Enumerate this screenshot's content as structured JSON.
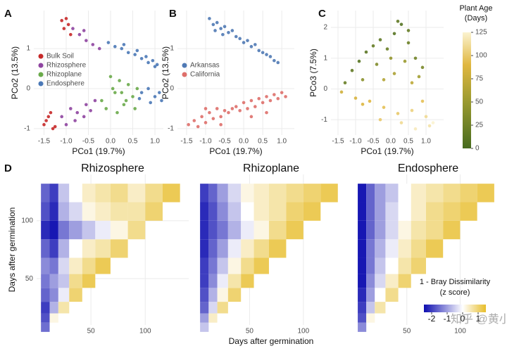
{
  "watermark": "知乎 @黄小伟",
  "chart_data": [
    {
      "type": "scatter",
      "panel_label": "A",
      "xlabel": "PCo1 (19.7%)",
      "ylabel": "PCo2 (13.5%)",
      "xlim": [
        -1.73,
        1.19
      ],
      "ylim": [
        -1.16,
        1.95
      ],
      "xticks": [
        -1.5,
        {
          "value": -1,
          "label": "-1.0"
        },
        -0.5,
        {
          "value": 0,
          "label": "0.0"
        },
        0.5,
        {
          "value": 1,
          "label": "1.0"
        }
      ],
      "yticks": [
        -1,
        0,
        1
      ],
      "grid": true,
      "legend": "left",
      "series": [
        {
          "name": "Bulk Soil",
          "color": "#c62828",
          "x": [
            -1.0,
            -0.95,
            -1.05,
            -0.9,
            -1.1,
            -1.45,
            -1.35,
            -1.5,
            -1.25,
            -1.4,
            -1.3
          ],
          "values": [
            1.75,
            1.6,
            1.5,
            1.35,
            1.7,
            -0.8,
            -0.6,
            -0.9,
            -0.95,
            -0.7,
            -1.0
          ]
        },
        {
          "name": "Rhizosphere",
          "color": "#8e44a0",
          "x": [
            -0.85,
            -0.7,
            -0.55,
            -0.4,
            -0.25,
            -0.6,
            -1.1,
            -0.9,
            -0.75,
            -0.55,
            -0.35,
            -1.0,
            -0.8,
            -0.6,
            -0.45
          ],
          "values": [
            1.5,
            1.35,
            1.2,
            1.1,
            1.0,
            1.45,
            -0.7,
            -0.5,
            -0.6,
            -0.4,
            -0.3,
            -0.9,
            -0.8,
            -0.7,
            -0.55
          ]
        },
        {
          "name": "Rhizoplane",
          "color": "#6aaa4a",
          "x": [
            -0.2,
            0.0,
            0.1,
            0.2,
            0.3,
            0.4,
            0.5,
            0.6,
            -0.1,
            0.15,
            0.35,
            0.55,
            0.05,
            0.25
          ],
          "values": [
            -0.3,
            0.3,
            -0.1,
            0.2,
            -0.4,
            0.1,
            -0.2,
            0.0,
            -0.5,
            -0.6,
            -0.3,
            -0.5,
            0.0,
            -0.1
          ]
        },
        {
          "name": "Endosphere",
          "color": "#4a78b6",
          "x": [
            -0.05,
            0.1,
            0.25,
            0.4,
            0.55,
            0.7,
            0.85,
            1.0,
            1.05,
            0.3,
            0.6,
            0.8,
            0.95,
            0.7,
            0.85,
            1.0,
            1.1,
            1.15,
            0.9,
            0.65
          ],
          "values": [
            1.15,
            1.05,
            1.0,
            0.9,
            0.85,
            0.75,
            0.65,
            0.55,
            0.6,
            1.1,
            0.95,
            0.8,
            0.7,
            -0.1,
            0.0,
            -0.2,
            -0.1,
            -0.3,
            -0.35,
            -0.25
          ]
        }
      ]
    },
    {
      "type": "scatter",
      "panel_label": "B",
      "xlabel": "PCo1 (19.7%)",
      "ylabel": "PCo2 (13.5%)",
      "xlim": [
        -1.74,
        1.33
      ],
      "ylim": [
        -1.16,
        1.95
      ],
      "xticks": [
        -1.5,
        {
          "value": -1,
          "label": "-1.0"
        },
        -0.5,
        {
          "value": 0,
          "label": "0.0"
        },
        0.5,
        {
          "value": 1,
          "label": "1.0"
        }
      ],
      "yticks": [
        -1,
        0,
        1
      ],
      "grid": true,
      "legend": "left",
      "series": [
        {
          "name": "Arkansas",
          "color": "#4f79b4",
          "x": [
            -0.9,
            -0.8,
            -0.7,
            -0.6,
            -0.5,
            -0.4,
            -0.3,
            -0.2,
            -0.1,
            0.0,
            0.1,
            0.2,
            0.3,
            0.4,
            0.5,
            0.6,
            0.7,
            0.8,
            0.9,
            -0.75,
            -0.55
          ],
          "values": [
            1.75,
            1.6,
            1.65,
            1.5,
            1.55,
            1.4,
            1.45,
            1.3,
            1.25,
            1.15,
            1.2,
            1.05,
            1.1,
            0.95,
            0.9,
            0.85,
            0.8,
            0.7,
            0.65,
            1.45,
            1.35
          ]
        },
        {
          "name": "California",
          "color": "#de6f6a",
          "x": [
            -1.45,
            -1.3,
            -1.2,
            -1.1,
            -1.0,
            -0.9,
            -0.8,
            -0.7,
            -0.6,
            -0.5,
            -0.4,
            -0.3,
            -0.2,
            -0.1,
            0.0,
            0.1,
            0.2,
            0.3,
            0.4,
            0.5,
            0.6,
            0.7,
            0.8,
            0.9,
            1.0,
            1.1,
            -1.0,
            -0.6,
            0.2,
            0.6
          ],
          "values": [
            -0.9,
            -0.8,
            -0.95,
            -0.7,
            -0.85,
            -0.6,
            -0.75,
            -0.5,
            -0.7,
            -0.55,
            -0.6,
            -0.5,
            -0.45,
            -0.55,
            -0.35,
            -0.5,
            -0.3,
            -0.45,
            -0.25,
            -0.35,
            -0.2,
            -0.3,
            -0.15,
            -0.25,
            -0.1,
            -0.2,
            -0.5,
            -0.9,
            -0.7,
            -0.6
          ]
        }
      ]
    },
    {
      "type": "scatter",
      "panel_label": "C",
      "xlabel": "PCo1 (19.7%)",
      "ylabel": "PCo3 (7.5%)",
      "xlim": [
        -1.7,
        1.5
      ],
      "ylim": [
        -1.5,
        2.55
      ],
      "xticks": [
        -1.5,
        {
          "value": -1,
          "label": "-1.0"
        },
        -0.5,
        {
          "value": 0,
          "label": "0.0"
        },
        0.5,
        {
          "value": 1,
          "label": "1.0"
        }
      ],
      "yticks": [
        -1,
        0,
        1,
        2
      ],
      "grid": true,
      "series": [
        {
          "x": [
            -1.3,
            -1.1,
            -0.9,
            -0.7,
            -0.5,
            -0.3,
            -0.1,
            0.1,
            0.3,
            0.5,
            0.7,
            0.9,
            -0.8,
            -0.4,
            0.0,
            0.4,
            0.8,
            0.2,
            0.5,
            0.1,
            -0.2,
            0.6,
            -1.4,
            -1.0,
            -0.6,
            -0.2,
            0.2,
            0.6,
            1.0,
            1.1,
            -0.8,
            -0.3,
            0.3,
            0.9,
            0.7,
            1.2
          ],
          "values": [
            0.2,
            0.6,
            0.9,
            1.2,
            1.4,
            1.6,
            1.3,
            1.8,
            2.1,
            1.5,
            1.0,
            0.7,
            0.3,
            0.8,
            1.0,
            0.9,
            0.4,
            2.2,
            1.9,
            0.5,
            0.3,
            0.2,
            -0.1,
            -0.3,
            -0.4,
            -0.6,
            -0.8,
            -0.7,
            -0.9,
            -1.2,
            -0.5,
            -1.0,
            -1.1,
            -0.4,
            -1.3,
            -1.1
          ],
          "ages": [
            20,
            15,
            10,
            12,
            18,
            14,
            20,
            10,
            8,
            22,
            25,
            30,
            40,
            35,
            45,
            50,
            55,
            15,
            18,
            60,
            65,
            70,
            80,
            85,
            90,
            95,
            100,
            105,
            110,
            115,
            88,
            100,
            110,
            95,
            120,
            125
          ]
        }
      ],
      "colorbar": {
        "title": [
          "Plant Age",
          "(Days)"
        ],
        "clim": [
          0,
          125
        ],
        "ticks": [
          0,
          25,
          50,
          75,
          100,
          125
        ],
        "stops": [
          [
            0,
            "#476b1f"
          ],
          [
            50,
            "#9a9a30"
          ],
          [
            90,
            "#e0b740"
          ],
          [
            125,
            "#fbf3d0"
          ]
        ]
      }
    },
    {
      "type": "heatmap",
      "panel_label": "D",
      "title": "Rhizosphere",
      "ylabel": "Days after germination",
      "xlim": [
        0,
        140
      ],
      "ylim": [
        10,
        140
      ],
      "xticks": [
        50,
        100
      ],
      "yticks": [
        50,
        100
      ],
      "grid": true,
      "x": [
        8,
        16,
        24,
        36,
        48,
        60,
        76,
        92,
        108,
        124
      ],
      "y": [
        8,
        16,
        24,
        36,
        48,
        60,
        76,
        92,
        108,
        124
      ],
      "stops": [
        [
          -2.5,
          "#0d0db0"
        ],
        [
          0,
          "#ffffff"
        ],
        [
          1.5,
          "#e7bd2a"
        ]
      ],
      "values": [
        [
          -1.5
        ],
        [
          -1.8,
          0.2
        ],
        [
          -2.0,
          -0.8,
          0.6
        ],
        [
          -1.6,
          -1.2,
          -0.2,
          1.0
        ],
        [
          -1.4,
          -1.0,
          -0.6,
          0.8,
          1.2
        ],
        [
          -1.2,
          -1.4,
          -0.4,
          0.4,
          0.8,
          1.2
        ],
        [
          -1.6,
          -2.0,
          -0.8,
          0.0,
          0.4,
          0.6,
          1.0
        ],
        [
          -2.2,
          -2.4,
          -1.4,
          -1.0,
          -0.6,
          -0.2,
          0.2,
          0.8
        ],
        [
          -1.8,
          -2.2,
          -0.8,
          -0.4,
          0.2,
          0.4,
          0.6,
          0.6,
          1.0
        ],
        [
          -1.6,
          -2.0,
          -0.6,
          0.0,
          0.4,
          0.6,
          0.8,
          0.4,
          0.8,
          1.2
        ]
      ]
    },
    {
      "type": "heatmap",
      "title": "Rhizoplane",
      "xlabel": "Days after germination",
      "xlim": [
        0,
        140
      ],
      "ylim": [
        10,
        140
      ],
      "xticks": [
        50,
        100
      ],
      "grid": true,
      "x": [
        8,
        16,
        24,
        36,
        48,
        60,
        76,
        92,
        108,
        124
      ],
      "y": [
        8,
        16,
        24,
        36,
        48,
        60,
        76,
        92,
        108,
        124
      ],
      "stops": [
        [
          -2.5,
          "#0d0db0"
        ],
        [
          0,
          "#ffffff"
        ],
        [
          1.5,
          "#e7bd2a"
        ]
      ],
      "values": [
        [
          -0.6
        ],
        [
          -1.0,
          0.4
        ],
        [
          -1.6,
          -0.4,
          0.8
        ],
        [
          -1.8,
          -0.8,
          0.2,
          1.0
        ],
        [
          -2.0,
          -1.2,
          -0.2,
          0.6,
          1.2
        ],
        [
          -2.0,
          -1.4,
          -0.6,
          0.2,
          0.8,
          1.2
        ],
        [
          -2.2,
          -1.6,
          -1.0,
          -0.2,
          0.4,
          0.8,
          1.2
        ],
        [
          -2.2,
          -1.8,
          -1.4,
          -0.8,
          -0.2,
          0.2,
          0.8,
          1.2
        ],
        [
          -2.2,
          -1.8,
          -1.2,
          -0.6,
          0.0,
          0.4,
          0.6,
          1.0,
          1.2
        ],
        [
          -2.0,
          -1.6,
          -1.0,
          -0.4,
          0.2,
          0.4,
          0.6,
          0.8,
          1.0,
          1.2
        ]
      ]
    },
    {
      "type": "heatmap",
      "title": "Endosphere",
      "xlim": [
        0,
        140
      ],
      "ylim": [
        10,
        140
      ],
      "xticks": [
        50,
        100
      ],
      "grid": true,
      "x": [
        8,
        16,
        24,
        36,
        48,
        60,
        76,
        92,
        108,
        124
      ],
      "y": [
        8,
        16,
        24,
        36,
        48,
        60,
        76,
        92,
        108,
        124
      ],
      "stops": [
        [
          -2.5,
          "#0d0db0"
        ],
        [
          0,
          "#ffffff"
        ],
        [
          1.5,
          "#e7bd2a"
        ]
      ],
      "values": [
        [
          -1.2
        ],
        [
          -1.8,
          0.2
        ],
        [
          -2.0,
          -0.6,
          0.6
        ],
        [
          -2.2,
          -1.0,
          0.0,
          0.8
        ],
        [
          -2.4,
          -1.2,
          -0.4,
          0.4,
          1.0
        ],
        [
          -2.4,
          -1.4,
          -0.6,
          0.0,
          0.6,
          1.0
        ],
        [
          -2.4,
          -1.4,
          -0.8,
          -0.2,
          0.4,
          0.8,
          1.2
        ],
        [
          -2.4,
          -1.6,
          -1.0,
          -0.4,
          0.2,
          0.6,
          0.8,
          1.2
        ],
        [
          -2.4,
          -1.6,
          -1.0,
          -0.4,
          0.0,
          0.4,
          0.8,
          1.0,
          1.2
        ],
        [
          -2.4,
          -1.6,
          -1.0,
          -0.6,
          0.0,
          0.4,
          0.6,
          0.8,
          1.0,
          1.2
        ]
      ],
      "colorbar": {
        "title": [
          "1 - Bray Dissimilarity",
          "(z score)"
        ],
        "clim": [
          -2.5,
          1.5
        ],
        "ticks": [
          -2,
          -1,
          0,
          1
        ],
        "stops": [
          [
            -2.5,
            "#0d0db0"
          ],
          [
            0,
            "#ffffff"
          ],
          [
            1.5,
            "#e7bd2a"
          ]
        ]
      }
    }
  ]
}
